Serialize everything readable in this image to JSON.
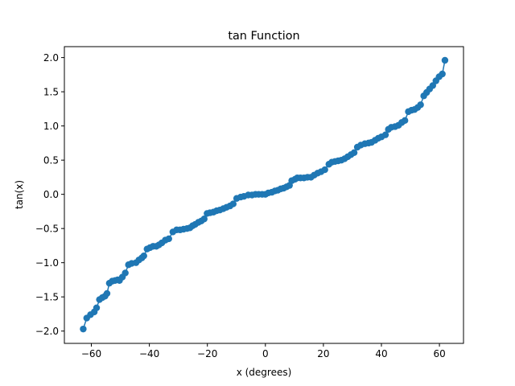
{
  "chart_data": {
    "type": "line",
    "title": "tan Function",
    "xlabel": "x (degrees)",
    "ylabel": "tan(x)",
    "xlim": [
      -69.3,
      68.3
    ],
    "ylim": [
      -2.18,
      2.16
    ],
    "xticks": [
      -60,
      -40,
      -20,
      0,
      20,
      40,
      60
    ],
    "yticks": [
      -2.0,
      -1.5,
      -1.0,
      -0.5,
      0.0,
      0.5,
      1.0,
      1.5,
      2.0
    ],
    "xtick_labels": [
      "−60",
      "−40",
      "−20",
      "0",
      "20",
      "40",
      "60"
    ],
    "ytick_labels": [
      "−2.0",
      "−1.5",
      "−1.0",
      "−0.5",
      "0.0",
      "0.5",
      "1.0",
      "1.5",
      "2.0"
    ],
    "grid": false,
    "series": [
      {
        "color": "#1f77b4",
        "marker": "circle",
        "points": [
          [
            -62.8,
            -1.97
          ],
          [
            -61.6,
            -1.81
          ],
          [
            -60.3,
            -1.76
          ],
          [
            -59.0,
            -1.72
          ],
          [
            -58.2,
            -1.66
          ],
          [
            -57.2,
            -1.54
          ],
          [
            -56.2,
            -1.51
          ],
          [
            -55.3,
            -1.49
          ],
          [
            -54.6,
            -1.45
          ],
          [
            -53.8,
            -1.3
          ],
          [
            -52.8,
            -1.27
          ],
          [
            -51.8,
            -1.26
          ],
          [
            -50.9,
            -1.25
          ],
          [
            -50.3,
            -1.26
          ],
          [
            -49.3,
            -1.21
          ],
          [
            -48.3,
            -1.15
          ],
          [
            -47.2,
            -1.03
          ],
          [
            -46.1,
            -1.01
          ],
          [
            -44.6,
            -1.0
          ],
          [
            -43.6,
            -0.96
          ],
          [
            -42.6,
            -0.93
          ],
          [
            -41.9,
            -0.9
          ],
          [
            -40.8,
            -0.8
          ],
          [
            -39.8,
            -0.78
          ],
          [
            -38.7,
            -0.76
          ],
          [
            -37.6,
            -0.76
          ],
          [
            -36.7,
            -0.74
          ],
          [
            -35.7,
            -0.71
          ],
          [
            -34.5,
            -0.67
          ],
          [
            -33.3,
            -0.65
          ],
          [
            -31.9,
            -0.55
          ],
          [
            -30.6,
            -0.52
          ],
          [
            -29.4,
            -0.52
          ],
          [
            -28.2,
            -0.51
          ],
          [
            -27.0,
            -0.5
          ],
          [
            -26.0,
            -0.49
          ],
          [
            -25.1,
            -0.46
          ],
          [
            -24.2,
            -0.44
          ],
          [
            -23.1,
            -0.41
          ],
          [
            -22.1,
            -0.39
          ],
          [
            -21.1,
            -0.36
          ],
          [
            -20.1,
            -0.28
          ],
          [
            -19.1,
            -0.27
          ],
          [
            -17.9,
            -0.26
          ],
          [
            -16.8,
            -0.24
          ],
          [
            -15.7,
            -0.23
          ],
          [
            -14.5,
            -0.21
          ],
          [
            -13.4,
            -0.19
          ],
          [
            -12.2,
            -0.17
          ],
          [
            -11.1,
            -0.14
          ],
          [
            -9.9,
            -0.06
          ],
          [
            -8.5,
            -0.04
          ],
          [
            -7.4,
            -0.03
          ],
          [
            -5.9,
            -0.01
          ],
          [
            -4.6,
            -0.01
          ],
          [
            -3.4,
            0.0
          ],
          [
            -2.3,
            0.0
          ],
          [
            -1.1,
            0.0
          ],
          [
            0.0,
            0.0
          ],
          [
            1.0,
            0.02
          ],
          [
            2.2,
            0.03
          ],
          [
            3.3,
            0.05
          ],
          [
            4.3,
            0.06
          ],
          [
            5.3,
            0.08
          ],
          [
            6.3,
            0.09
          ],
          [
            7.3,
            0.11
          ],
          [
            8.3,
            0.13
          ],
          [
            9.1,
            0.2
          ],
          [
            10.2,
            0.22
          ],
          [
            11.0,
            0.24
          ],
          [
            12.1,
            0.24
          ],
          [
            13.3,
            0.24
          ],
          [
            14.5,
            0.25
          ],
          [
            15.7,
            0.25
          ],
          [
            16.8,
            0.28
          ],
          [
            18.0,
            0.31
          ],
          [
            19.2,
            0.33
          ],
          [
            20.5,
            0.36
          ],
          [
            21.9,
            0.44
          ],
          [
            22.9,
            0.47
          ],
          [
            24.0,
            0.48
          ],
          [
            25.1,
            0.49
          ],
          [
            26.2,
            0.5
          ],
          [
            27.3,
            0.52
          ],
          [
            28.4,
            0.55
          ],
          [
            29.5,
            0.58
          ],
          [
            30.6,
            0.61
          ],
          [
            31.7,
            0.69
          ],
          [
            32.9,
            0.72
          ],
          [
            34.3,
            0.74
          ],
          [
            35.6,
            0.75
          ],
          [
            36.6,
            0.76
          ],
          [
            37.8,
            0.79
          ],
          [
            38.9,
            0.82
          ],
          [
            40.0,
            0.84
          ],
          [
            41.4,
            0.87
          ],
          [
            42.4,
            0.95
          ],
          [
            43.4,
            0.98
          ],
          [
            44.7,
            0.99
          ],
          [
            45.9,
            1.01
          ],
          [
            47.0,
            1.05
          ],
          [
            48.1,
            1.08
          ],
          [
            49.3,
            1.21
          ],
          [
            50.4,
            1.23
          ],
          [
            51.4,
            1.24
          ],
          [
            52.5,
            1.27
          ],
          [
            53.5,
            1.31
          ],
          [
            54.6,
            1.44
          ],
          [
            55.6,
            1.49
          ],
          [
            56.6,
            1.54
          ],
          [
            57.7,
            1.59
          ],
          [
            58.8,
            1.66
          ],
          [
            59.9,
            1.72
          ],
          [
            61.0,
            1.76
          ],
          [
            61.9,
            1.96
          ]
        ]
      }
    ]
  }
}
